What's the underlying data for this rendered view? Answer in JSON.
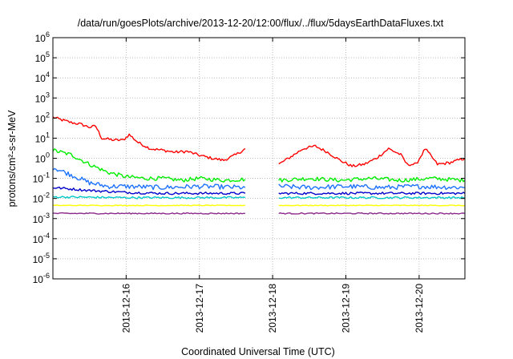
{
  "chart_data": {
    "type": "line",
    "title": "/data/run/goesPlots/archive/2013-12-20/12:00/flux/../flux/5daysEarthDataFluxes.txt",
    "xlabel": "Coordinated Universal Time (UTC)",
    "ylabel": "protons/cm²-s-sr-MeV",
    "y_scale": "log",
    "ylim": [
      1e-06,
      1000000.0
    ],
    "xlim": [
      "2013-12-15T00:00",
      "2013-12-20T15:00"
    ],
    "x_ticks": [
      "2013-12-16",
      "2013-12-17",
      "2013-12-18",
      "2013-12-19",
      "2013-12-20"
    ],
    "y_ticks": [
      {
        "base": "10",
        "exp": "-6"
      },
      {
        "base": "10",
        "exp": "-5"
      },
      {
        "base": "10",
        "exp": "-4"
      },
      {
        "base": "10",
        "exp": "-3"
      },
      {
        "base": "10",
        "exp": "-2"
      },
      {
        "base": "10",
        "exp": "-1"
      },
      {
        "base": "10",
        "exp": "0"
      },
      {
        "base": "10",
        "exp": "1"
      },
      {
        "base": "10",
        "exp": "2"
      },
      {
        "base": "10",
        "exp": "3"
      },
      {
        "base": "10",
        "exp": "4"
      },
      {
        "base": "10",
        "exp": "5"
      },
      {
        "base": "10",
        "exp": "6"
      }
    ],
    "grid": true,
    "data_gap": [
      "2013-12-17T16:00",
      "2013-12-18T02:00"
    ],
    "series": [
      {
        "color": "#ff0000",
        "points": [
          [
            "2013-12-15T00:00",
            110
          ],
          [
            "2013-12-15T03:00",
            80
          ],
          [
            "2013-12-15T06:00",
            60
          ],
          [
            "2013-12-15T09:00",
            50
          ],
          [
            "2013-12-15T12:00",
            35
          ],
          [
            "2013-12-15T14:00",
            40
          ],
          [
            "2013-12-15T16:00",
            10
          ],
          [
            "2013-12-15T20:00",
            8
          ],
          [
            "2013-12-15T23:00",
            8
          ],
          [
            "2013-12-16T01:00",
            15
          ],
          [
            "2013-12-16T04:00",
            6
          ],
          [
            "2013-12-16T08:00",
            3
          ],
          [
            "2013-12-16T12:00",
            2.5
          ],
          [
            "2013-12-16T16:00",
            2
          ],
          [
            "2013-12-16T20:00",
            2.2
          ],
          [
            "2013-12-17T00:00",
            1.4
          ],
          [
            "2013-12-17T04:00",
            1
          ],
          [
            "2013-12-17T08:00",
            0.8
          ],
          [
            "2013-12-17T12:00",
            1.5
          ],
          [
            "2013-12-17T15:00",
            3
          ],
          [
            "2013-12-18T02:00",
            0.5
          ],
          [
            "2013-12-18T06:00",
            1.2
          ],
          [
            "2013-12-18T10:00",
            3
          ],
          [
            "2013-12-18T14:00",
            4
          ],
          [
            "2013-12-18T18:00",
            2
          ],
          [
            "2013-12-18T22:00",
            0.8
          ],
          [
            "2013-12-19T02:00",
            0.4
          ],
          [
            "2013-12-19T06:00",
            0.5
          ],
          [
            "2013-12-19T10:00",
            1
          ],
          [
            "2013-12-19T14:00",
            3
          ],
          [
            "2013-12-19T18:00",
            1.5
          ],
          [
            "2013-12-19T20:00",
            0.5
          ],
          [
            "2013-12-19T23:00",
            0.5
          ],
          [
            "2013-12-20T02:00",
            3
          ],
          [
            "2013-12-20T06:00",
            0.5
          ],
          [
            "2013-12-20T10:00",
            0.6
          ],
          [
            "2013-12-20T15:00",
            1
          ]
        ]
      },
      {
        "color": "#00ee00",
        "points": [
          [
            "2013-12-15T00:00",
            2.5
          ],
          [
            "2013-12-15T06:00",
            1.5
          ],
          [
            "2013-12-15T12:00",
            0.5
          ],
          [
            "2013-12-15T18:00",
            0.2
          ],
          [
            "2013-12-16T00:00",
            0.12
          ],
          [
            "2013-12-16T06:00",
            0.1
          ],
          [
            "2013-12-16T12:00",
            0.1
          ],
          [
            "2013-12-16T18:00",
            0.08
          ],
          [
            "2013-12-17T00:00",
            0.1
          ],
          [
            "2013-12-17T08:00",
            0.08
          ],
          [
            "2013-12-17T15:00",
            0.09
          ],
          [
            "2013-12-18T02:00",
            0.08
          ],
          [
            "2013-12-18T12:00",
            0.1
          ],
          [
            "2013-12-18T22:00",
            0.08
          ],
          [
            "2013-12-19T08:00",
            0.1
          ],
          [
            "2013-12-19T18:00",
            0.08
          ],
          [
            "2013-12-20T04:00",
            0.1
          ],
          [
            "2013-12-20T15:00",
            0.08
          ]
        ]
      },
      {
        "color": "#1e72ff",
        "points": [
          [
            "2013-12-15T00:00",
            0.35
          ],
          [
            "2013-12-15T06:00",
            0.15
          ],
          [
            "2013-12-15T12:00",
            0.06
          ],
          [
            "2013-12-15T18:00",
            0.04
          ],
          [
            "2013-12-16T00:00",
            0.04
          ],
          [
            "2013-12-16T12:00",
            0.035
          ],
          [
            "2013-12-17T00:00",
            0.04
          ],
          [
            "2013-12-17T15:00",
            0.035
          ],
          [
            "2013-12-18T02:00",
            0.04
          ],
          [
            "2013-12-18T12:00",
            0.035
          ],
          [
            "2013-12-19T00:00",
            0.04
          ],
          [
            "2013-12-19T12:00",
            0.035
          ],
          [
            "2013-12-20T00:00",
            0.04
          ],
          [
            "2013-12-20T15:00",
            0.035
          ]
        ]
      },
      {
        "color": "#0000cc",
        "points": [
          [
            "2013-12-15T00:00",
            0.035
          ],
          [
            "2013-12-15T12:00",
            0.025
          ],
          [
            "2013-12-16T00:00",
            0.02
          ],
          [
            "2013-12-16T12:00",
            0.018
          ],
          [
            "2013-12-17T00:00",
            0.018
          ],
          [
            "2013-12-17T15:00",
            0.018
          ],
          [
            "2013-12-18T02:00",
            0.018
          ],
          [
            "2013-12-19T00:00",
            0.018
          ],
          [
            "2013-12-20T00:00",
            0.018
          ],
          [
            "2013-12-20T15:00",
            0.018
          ]
        ]
      },
      {
        "color": "#00c8c8",
        "points": [
          [
            "2013-12-15T00:00",
            0.012
          ],
          [
            "2013-12-16T00:00",
            0.011
          ],
          [
            "2013-12-17T00:00",
            0.011
          ],
          [
            "2013-12-17T15:00",
            0.011
          ],
          [
            "2013-12-18T02:00",
            0.011
          ],
          [
            "2013-12-19T00:00",
            0.011
          ],
          [
            "2013-12-20T00:00",
            0.011
          ],
          [
            "2013-12-20T15:00",
            0.011
          ]
        ]
      },
      {
        "color": "#ffff00",
        "points": [
          [
            "2013-12-15T00:00",
            0.0045
          ],
          [
            "2013-12-16T00:00",
            0.0045
          ],
          [
            "2013-12-17T00:00",
            0.0045
          ],
          [
            "2013-12-17T15:00",
            0.0045
          ],
          [
            "2013-12-18T02:00",
            0.0045
          ],
          [
            "2013-12-19T00:00",
            0.0045
          ],
          [
            "2013-12-20T00:00",
            0.0045
          ],
          [
            "2013-12-20T15:00",
            0.0045
          ]
        ]
      },
      {
        "color": "#8b2a8b",
        "points": [
          [
            "2013-12-15T00:00",
            0.0018
          ],
          [
            "2013-12-16T00:00",
            0.0018
          ],
          [
            "2013-12-17T00:00",
            0.0018
          ],
          [
            "2013-12-17T15:00",
            0.0018
          ],
          [
            "2013-12-18T02:00",
            0.0018
          ],
          [
            "2013-12-19T00:00",
            0.0018
          ],
          [
            "2013-12-20T00:00",
            0.0018
          ],
          [
            "2013-12-20T15:00",
            0.0018
          ]
        ]
      }
    ]
  }
}
